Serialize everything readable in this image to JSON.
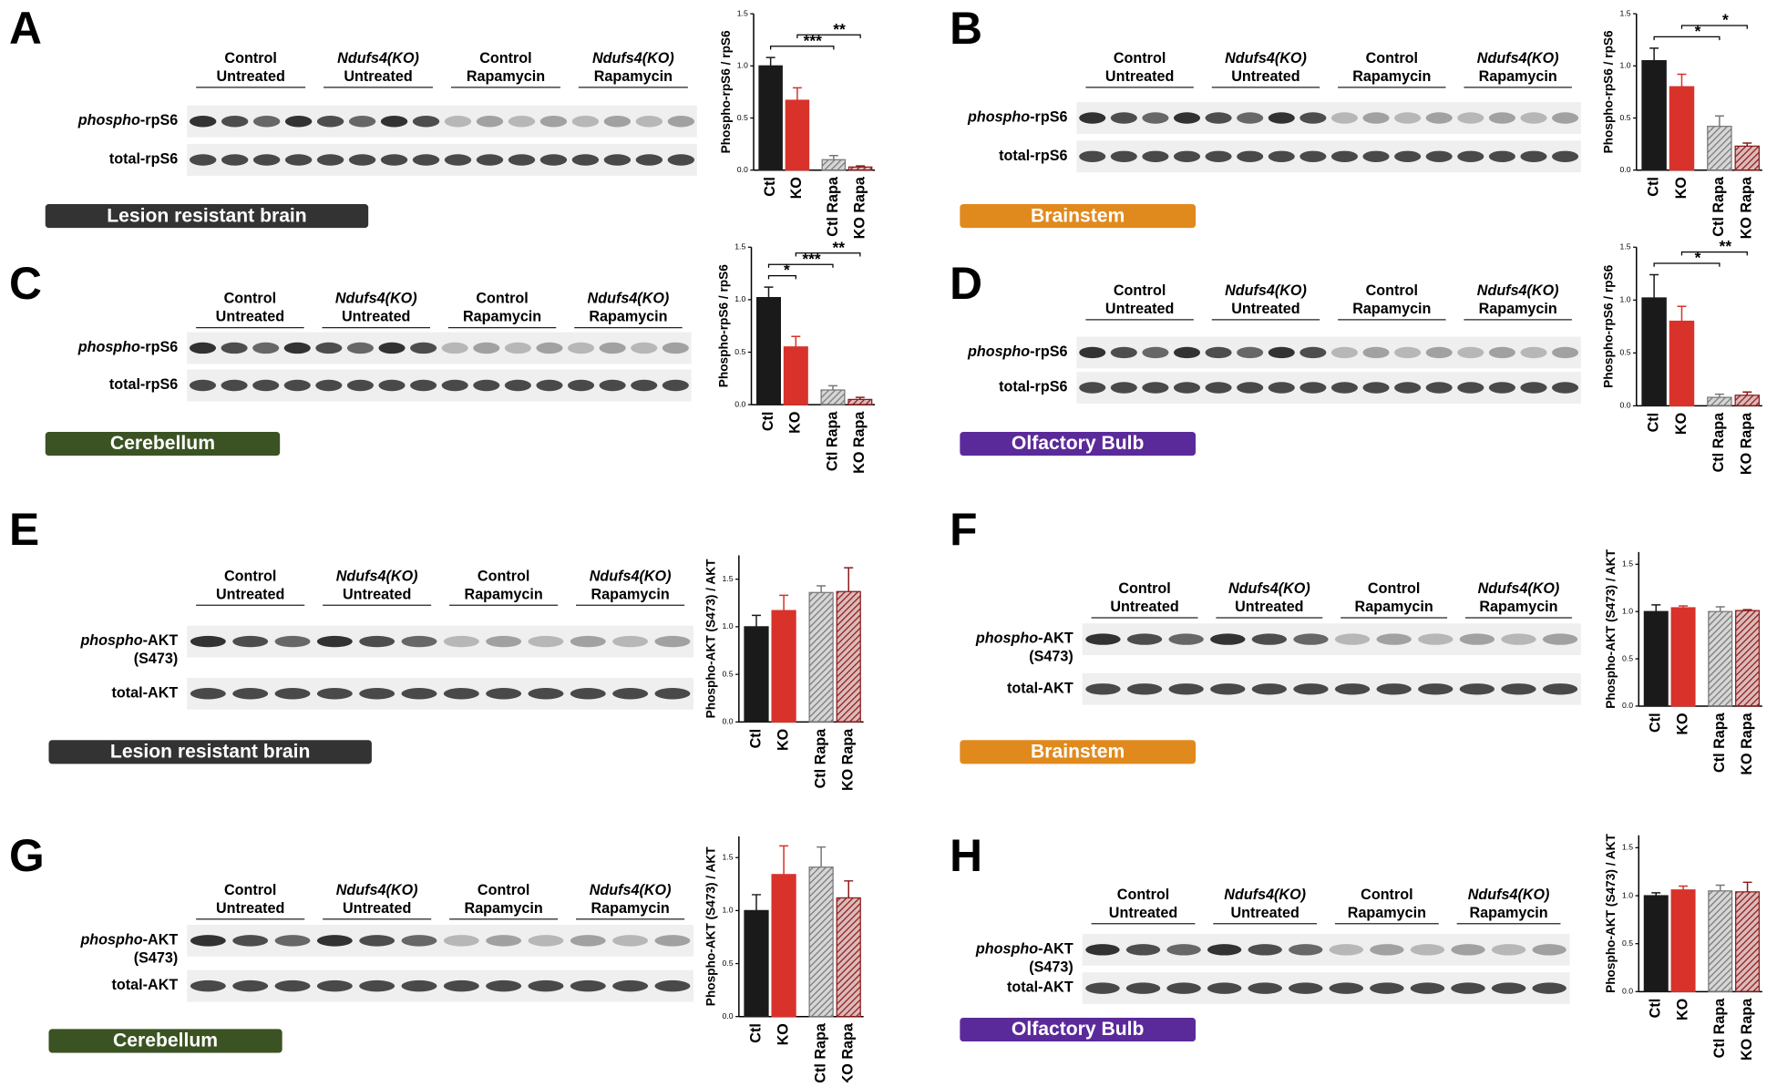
{
  "figure": {
    "blot_groups": [
      {
        "lines": [
          "Control",
          "Untreated"
        ],
        "italic": false
      },
      {
        "lines": [
          "Ndufs4(KO)",
          "Untreated"
        ],
        "italic": true
      },
      {
        "lines": [
          "Control",
          "Rapamycin"
        ],
        "italic": false
      },
      {
        "lines": [
          "Ndufs4(KO)",
          "Rapamycin"
        ],
        "italic": true
      }
    ],
    "panels": [
      {
        "letter": "A",
        "region": "Lesion resistant brain",
        "region_color": "#333333",
        "rows": [
          {
            "italic": "phospho",
            "text": "-rpS6"
          },
          {
            "text": "total-rpS6"
          }
        ]
      },
      {
        "letter": "B",
        "region": "Brainstem",
        "region_color": "#e08a1e",
        "rows": [
          {
            "italic": "phospho",
            "text": "-rpS6"
          },
          {
            "text": "total-rpS6"
          }
        ]
      },
      {
        "letter": "C",
        "region": "Cerebellum",
        "region_color": "#3b5323",
        "rows": [
          {
            "italic": "phospho",
            "text": "-rpS6"
          },
          {
            "text": "total-rpS6"
          }
        ]
      },
      {
        "letter": "D",
        "region": "Olfactory Bulb",
        "region_color": "#5b2a9a",
        "rows": [
          {
            "italic": "phospho",
            "text": "-rpS6"
          },
          {
            "text": "total-rpS6"
          }
        ]
      },
      {
        "letter": "E",
        "region": "Lesion resistant brain",
        "region_color": "#333333",
        "rows": [
          {
            "italic": "phospho",
            "text": "-AKT",
            "line2": "(S473)"
          },
          {
            "text": "total-AKT"
          }
        ]
      },
      {
        "letter": "F",
        "region": "Brainstem",
        "region_color": "#e08a1e",
        "rows": [
          {
            "italic": "phospho",
            "text": "-AKT",
            "line2": "(S473)"
          },
          {
            "text": "total-AKT"
          }
        ]
      },
      {
        "letter": "G",
        "region": "Cerebellum",
        "region_color": "#3b5323",
        "rows": [
          {
            "italic": "phospho",
            "text": "-AKT",
            "line2": "(S473)"
          },
          {
            "text": "total-AKT"
          }
        ]
      },
      {
        "letter": "H",
        "region": "Olfactory Bulb",
        "region_color": "#5b2a9a",
        "rows": [
          {
            "italic": "phospho",
            "text": "-AKT",
            "line2": "(S473)"
          },
          {
            "text": "total-AKT"
          }
        ]
      }
    ]
  },
  "chart_data": [
    {
      "type": "bar",
      "ylabel": "Phospho-rpS6 / rpS6",
      "categories": [
        "Ctl",
        "KO",
        "Ctl Rapa",
        "KO Rapa"
      ],
      "values": [
        1.0,
        0.67,
        0.1,
        0.03
      ],
      "errors": [
        0.08,
        0.12,
        0.04,
        0.01
      ],
      "colors": [
        "#1a1a1a",
        "#d8322a",
        "#777777",
        "#8b1a1a"
      ],
      "hatched": [
        false,
        false,
        true,
        true
      ],
      "ylim": [
        0,
        1.5
      ],
      "yticks": [
        {
          "value": 0,
          "label": "0.0"
        },
        {
          "value": 0.5,
          "label": "0.5"
        },
        {
          "value": 1,
          "label": "1.0"
        },
        {
          "value": 1.5,
          "label": "1.5"
        }
      ],
      "significance": [
        {
          "from": 0,
          "to": 2,
          "label": "***"
        },
        {
          "from": 1,
          "to": 3,
          "label": "**"
        }
      ]
    },
    {
      "type": "bar",
      "ylabel": "Phospho-rpS6 / rpS6",
      "categories": [
        "Ctl",
        "KO",
        "Ctl Rapa",
        "KO Rapa"
      ],
      "values": [
        1.05,
        0.8,
        0.42,
        0.23
      ],
      "errors": [
        0.12,
        0.12,
        0.1,
        0.03
      ],
      "colors": [
        "#1a1a1a",
        "#d8322a",
        "#777777",
        "#8b1a1a"
      ],
      "hatched": [
        false,
        false,
        true,
        true
      ],
      "ylim": [
        0,
        1.5
      ],
      "yticks": [
        {
          "value": 0,
          "label": "0.0"
        },
        {
          "value": 0.5,
          "label": "0.5"
        },
        {
          "value": 1,
          "label": "1.0"
        },
        {
          "value": 1.5,
          "label": "1.5"
        }
      ],
      "significance": [
        {
          "from": 0,
          "to": 2,
          "label": "*"
        },
        {
          "from": 1,
          "to": 3,
          "label": "*"
        }
      ]
    },
    {
      "type": "bar",
      "ylabel": "Phospho-rpS6 / rpS6",
      "categories": [
        "Ctl",
        "KO",
        "Ctl Rapa",
        "KO Rapa"
      ],
      "values": [
        1.02,
        0.55,
        0.14,
        0.05
      ],
      "errors": [
        0.1,
        0.1,
        0.04,
        0.02
      ],
      "colors": [
        "#1a1a1a",
        "#d8322a",
        "#777777",
        "#8b1a1a"
      ],
      "hatched": [
        false,
        false,
        true,
        true
      ],
      "ylim": [
        0,
        1.5
      ],
      "yticks": [
        {
          "value": 0,
          "label": "0.0"
        },
        {
          "value": 0.5,
          "label": "0.5"
        },
        {
          "value": 1,
          "label": "1.0"
        },
        {
          "value": 1.5,
          "label": "1.5"
        }
      ],
      "significance": [
        {
          "from": 0,
          "to": 1,
          "label": "*"
        },
        {
          "from": 0,
          "to": 2,
          "label": "***"
        },
        {
          "from": 1,
          "to": 3,
          "label": "**"
        }
      ]
    },
    {
      "type": "bar",
      "ylabel": "Phospho-rpS6 / rpS6",
      "categories": [
        "Ctl",
        "KO",
        "Ctl Rapa",
        "KO Rapa"
      ],
      "values": [
        1.02,
        0.8,
        0.08,
        0.1
      ],
      "errors": [
        0.22,
        0.14,
        0.03,
        0.03
      ],
      "colors": [
        "#1a1a1a",
        "#d8322a",
        "#777777",
        "#8b1a1a"
      ],
      "hatched": [
        false,
        false,
        true,
        true
      ],
      "ylim": [
        0,
        1.5
      ],
      "yticks": [
        {
          "value": 0,
          "label": "0.0"
        },
        {
          "value": 0.5,
          "label": "0.5"
        },
        {
          "value": 1,
          "label": "1.0"
        },
        {
          "value": 1.5,
          "label": "1.5"
        }
      ],
      "significance": [
        {
          "from": 0,
          "to": 2,
          "label": "*"
        },
        {
          "from": 1,
          "to": 3,
          "label": "**"
        }
      ]
    },
    {
      "type": "bar",
      "ylabel": "Phospho-AKT (S473) / AKT",
      "categories": [
        "Ctl",
        "KO",
        "Ctl Rapa",
        "KO Rapa"
      ],
      "values": [
        1.0,
        1.17,
        1.36,
        1.37
      ],
      "errors": [
        0.12,
        0.16,
        0.07,
        0.25
      ],
      "colors": [
        "#1a1a1a",
        "#d8322a",
        "#777777",
        "#8b1a1a"
      ],
      "hatched": [
        false,
        false,
        true,
        true
      ],
      "ylim": [
        0,
        1.75
      ],
      "yticks": [
        {
          "value": 0,
          "label": "0.0"
        },
        {
          "value": 0.5,
          "label": "0.5"
        },
        {
          "value": 1,
          "label": "1.0"
        },
        {
          "value": 1.5,
          "label": "1.5"
        }
      ],
      "significance": []
    },
    {
      "type": "bar",
      "ylabel": "Phospho-AKT (S473) / AKT",
      "categories": [
        "Ctl",
        "KO",
        "Ctl Rapa",
        "KO Rapa"
      ],
      "values": [
        1.0,
        1.04,
        1.0,
        1.01
      ],
      "errors": [
        0.07,
        0.02,
        0.05,
        0.01
      ],
      "colors": [
        "#1a1a1a",
        "#d8322a",
        "#777777",
        "#8b1a1a"
      ],
      "hatched": [
        false,
        false,
        true,
        true
      ],
      "ylim": [
        0,
        1.63
      ],
      "yticks": [
        {
          "value": 0,
          "label": "0.0"
        },
        {
          "value": 0.5,
          "label": "0.5"
        },
        {
          "value": 1,
          "label": "1.0"
        },
        {
          "value": 1.5,
          "label": "1.5"
        }
      ],
      "significance": []
    },
    {
      "type": "bar",
      "ylabel": "Phospho-AKT (S473) / AKT",
      "categories": [
        "Ctl",
        "KO",
        "Ctl Rapa",
        "KO Rapa"
      ],
      "values": [
        1.0,
        1.34,
        1.41,
        1.12
      ],
      "errors": [
        0.15,
        0.27,
        0.19,
        0.16
      ],
      "colors": [
        "#1a1a1a",
        "#d8322a",
        "#777777",
        "#8b1a1a"
      ],
      "hatched": [
        false,
        false,
        true,
        true
      ],
      "ylim": [
        0,
        1.7
      ],
      "yticks": [
        {
          "value": 0,
          "label": "0.0"
        },
        {
          "value": 0.5,
          "label": "0.5"
        },
        {
          "value": 1,
          "label": "1.0"
        },
        {
          "value": 1.5,
          "label": "1.5"
        }
      ],
      "significance": []
    },
    {
      "type": "bar",
      "ylabel": "Phospho-AKT (S473) / AKT",
      "categories": [
        "Ctl",
        "KO",
        "Ctl Rapa",
        "KO Rapa"
      ],
      "values": [
        1.0,
        1.06,
        1.05,
        1.04
      ],
      "errors": [
        0.03,
        0.04,
        0.06,
        0.1
      ],
      "colors": [
        "#1a1a1a",
        "#d8322a",
        "#777777",
        "#8b1a1a"
      ],
      "hatched": [
        false,
        false,
        true,
        true
      ],
      "ylim": [
        0,
        1.63
      ],
      "yticks": [
        {
          "value": 0,
          "label": "0.0"
        },
        {
          "value": 0.5,
          "label": "0.5"
        },
        {
          "value": 1,
          "label": "1.0"
        },
        {
          "value": 1.5,
          "label": "1.5"
        }
      ],
      "significance": []
    }
  ]
}
